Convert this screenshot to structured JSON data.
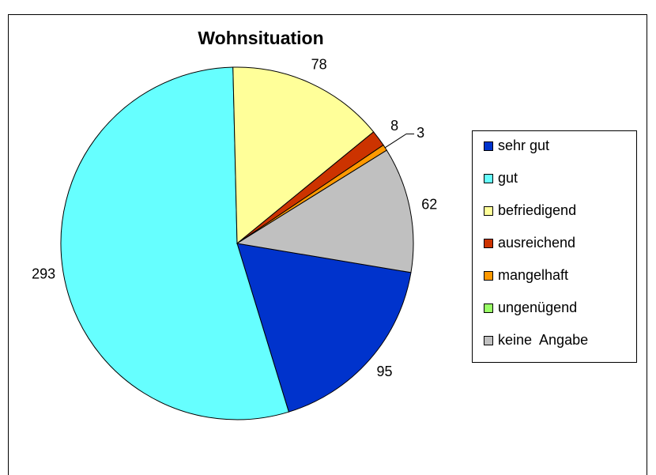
{
  "chart_data": {
    "type": "pie",
    "title": "Wohnsituation",
    "categories": [
      "sehr gut",
      "gut",
      "befriedigend",
      "ausreichend",
      "mangelhaft",
      "ungenügend",
      "keine  Angabe"
    ],
    "values": [
      95,
      293,
      78,
      8,
      3,
      0,
      62
    ],
    "colors": [
      "#0033cc",
      "#66ffff",
      "#ffff99",
      "#cc3300",
      "#ff9900",
      "#99ff66",
      "#c0c0c0"
    ],
    "legend": "right"
  }
}
